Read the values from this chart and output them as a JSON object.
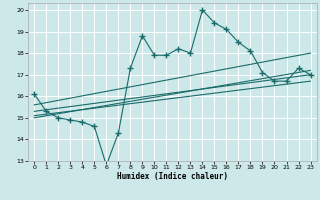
{
  "xlabel": "Humidex (Indice chaleur)",
  "ylabel": "",
  "xlim": [
    -0.5,
    23.5
  ],
  "ylim": [
    13,
    20.3
  ],
  "yticks": [
    13,
    14,
    15,
    16,
    17,
    18,
    19,
    20
  ],
  "xticks": [
    0,
    1,
    2,
    3,
    4,
    5,
    6,
    7,
    8,
    9,
    10,
    11,
    12,
    13,
    14,
    15,
    16,
    17,
    18,
    19,
    20,
    21,
    22,
    23
  ],
  "bg_color": "#cce8e8",
  "line_color": "#1a6b6b",
  "grid_color": "#ffffff",
  "series": [
    {
      "x": [
        0,
        1,
        2,
        3,
        4,
        5,
        6,
        7,
        8,
        9,
        10,
        11,
        12,
        13,
        14,
        15,
        16,
        17,
        18,
        19,
        20,
        21,
        22,
        23
      ],
      "y": [
        16.1,
        15.3,
        15.0,
        14.9,
        14.8,
        14.6,
        12.8,
        14.3,
        17.3,
        18.8,
        17.9,
        17.9,
        18.2,
        18.0,
        20.0,
        19.4,
        19.1,
        18.5,
        18.1,
        17.1,
        16.7,
        16.7,
        17.3,
        17.0
      ],
      "markers": true
    },
    {
      "x": [
        0,
        23
      ],
      "y": [
        15.3,
        17.0
      ],
      "markers": false
    },
    {
      "x": [
        0,
        23
      ],
      "y": [
        15.1,
        16.7
      ],
      "markers": false
    },
    {
      "x": [
        0,
        23
      ],
      "y": [
        15.0,
        17.2
      ],
      "markers": false
    },
    {
      "x": [
        0,
        23
      ],
      "y": [
        15.6,
        18.0
      ],
      "markers": false
    }
  ]
}
